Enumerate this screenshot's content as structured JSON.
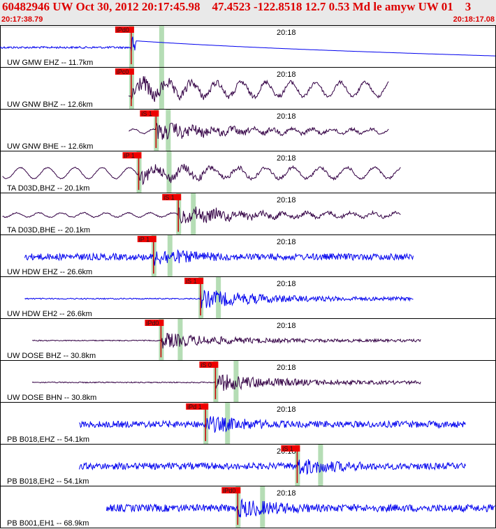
{
  "header": {
    "title": "60482946 UW Oct 30, 2012 20:17:45.98    47.4523 -122.8518 12.7 0.53 Md le amyw UW 01    3",
    "time_start": "20:17:38.79",
    "time_end": "20:18:17.08"
  },
  "colors": {
    "pick_box": "#ee0000",
    "pick_text": "#222222",
    "pick_line": "#cc0000",
    "marker_band": "#b5ddb5",
    "blue_trace": "#0000ee",
    "purple_trace": "#330044",
    "synthetic": "#cc0000",
    "border": "#000000"
  },
  "chart_data": {
    "type": "line",
    "title": "60482946 UW Oct 30, 2012 20:17:45.98    47.4523 -122.8518 12.7 0.53 Md le amyw UW 01    3",
    "x_start": "20:17:38.79",
    "x_end": "20:18:17.08",
    "minute_tick": "20:18",
    "series": [
      {
        "name": "UW GMW EHZ -- 11.7km",
        "pick": "iPd0",
        "color": "blue",
        "trace_start": 0.0,
        "trace_end": 1.0,
        "arrival": 0.265,
        "envelope": "impulse",
        "amp": 0.55,
        "period": 0.012
      },
      {
        "name": "UW GNW BHZ -- 12.6km",
        "pick": "iPc0",
        "color": "purple",
        "trace_start": 0.26,
        "trace_end": 0.785,
        "arrival": 0.265,
        "envelope": "decay-longwave",
        "amp": 0.45,
        "period": 0.05
      },
      {
        "name": "UW GNW BHE -- 12.6km",
        "pick": "iS 1",
        "color": "purple",
        "trace_start": 0.26,
        "trace_end": 0.785,
        "arrival": 0.315,
        "envelope": "decay",
        "amp": 0.42,
        "period": 0.04
      },
      {
        "name": "TA D03D,BHZ -- 20.1km",
        "pick": "iP 1",
        "color": "purple",
        "trace_start": 0.005,
        "trace_end": 0.81,
        "arrival": 0.28,
        "envelope": "decay-longwave",
        "amp": 0.35,
        "period": 0.055
      },
      {
        "name": "TA D03D,BHE -- 20.1km",
        "pick": "iS 1",
        "color": "purple",
        "trace_start": 0.005,
        "trace_end": 0.81,
        "arrival": 0.36,
        "envelope": "decay",
        "amp": 0.42,
        "period": 0.045
      },
      {
        "name": "UW HDW EHZ -- 26.6km",
        "pick": "iP 1",
        "color": "blue",
        "trace_start": 0.05,
        "trace_end": 0.835,
        "arrival": 0.31,
        "envelope": "noisy-burst",
        "amp": 0.45,
        "period": 0.01
      },
      {
        "name": "UW HDW EH2 -- 26.6km",
        "pick": "iS 1",
        "color": "blue",
        "trace_start": 0.05,
        "trace_end": 0.835,
        "arrival": 0.405,
        "envelope": "burst",
        "amp": 0.48,
        "period": 0.01
      },
      {
        "name": "UW DOSE BHZ -- 30.8km",
        "pick": "iPd0",
        "color": "purple",
        "trace_start": 0.065,
        "trace_end": 0.85,
        "arrival": 0.325,
        "envelope": "burst",
        "amp": 0.4,
        "period": 0.012
      },
      {
        "name": "UW DOSE BHN -- 30.8km",
        "pick": "iS 0",
        "color": "purple",
        "trace_start": 0.065,
        "trace_end": 0.85,
        "arrival": 0.435,
        "envelope": "burst",
        "amp": 0.45,
        "period": 0.012
      },
      {
        "name": "PB B018,EHZ -- 54.1km",
        "pick": "iPd 1",
        "color": "blue",
        "trace_start": 0.16,
        "trace_end": 0.94,
        "arrival": 0.415,
        "envelope": "noisy-late",
        "amp": 0.45,
        "period": 0.006
      },
      {
        "name": "PB B018,EH2 -- 54.1km",
        "pick": "iS 1",
        "color": "blue",
        "trace_start": 0.16,
        "trace_end": 0.94,
        "arrival": 0.6,
        "envelope": "noisy-late",
        "amp": 0.45,
        "period": 0.006
      },
      {
        "name": "PB B001,EH1 -- 68.9km",
        "pick": "iPd0",
        "color": "blue",
        "trace_start": 0.215,
        "trace_end": 1.0,
        "arrival": 0.48,
        "envelope": "noisy-full",
        "amp": 0.5,
        "period": 0.006
      }
    ]
  }
}
